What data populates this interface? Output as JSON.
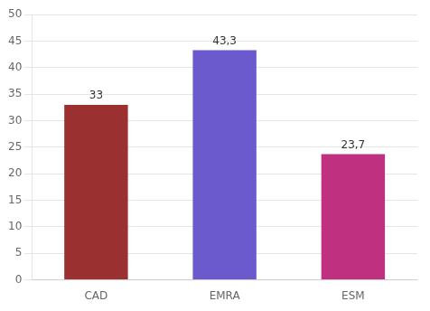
{
  "chart_data": {
    "type": "bar",
    "categories": [
      "CAD",
      "EMRA",
      "ESM"
    ],
    "values": [
      33,
      43.3,
      23.7
    ],
    "value_labels": [
      "33",
      "43,3",
      "23,7"
    ],
    "data_labels": true,
    "colors": [
      "#9b3030",
      "#6a5acd",
      "#c03080"
    ],
    "ylim": [
      0,
      50
    ],
    "yticks": [
      0,
      5,
      10,
      15,
      20,
      25,
      30,
      35,
      40,
      45,
      50
    ],
    "grid": true
  }
}
